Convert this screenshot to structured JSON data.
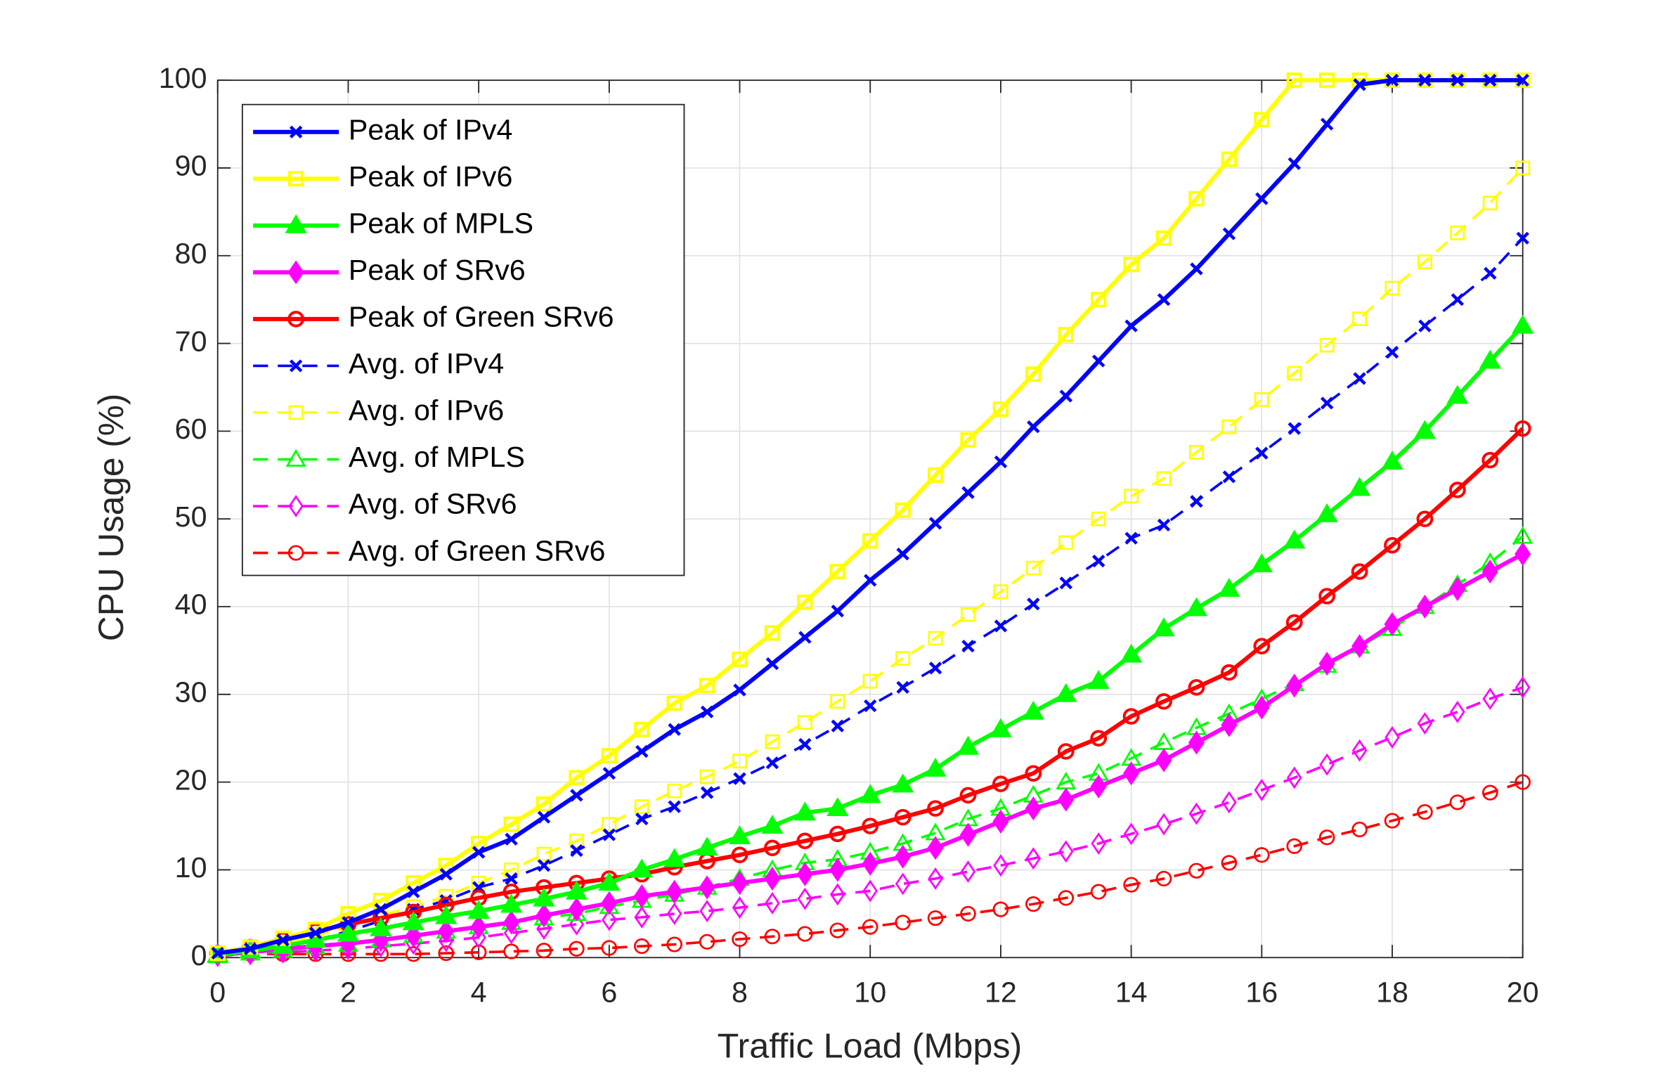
{
  "chart_data": {
    "type": "line",
    "xlabel": "Traffic Load (Mbps)",
    "ylabel": "CPU Usage (%)",
    "xlim": [
      0,
      20
    ],
    "xticks": [
      0,
      2,
      4,
      6,
      8,
      10,
      12,
      14,
      16,
      18,
      20
    ],
    "ylim": [
      0,
      100
    ],
    "yticks": [
      0,
      10,
      20,
      30,
      40,
      50,
      60,
      70,
      80,
      90,
      100
    ],
    "grid": true,
    "legend": "upper left",
    "x": [
      0,
      0.5,
      1,
      1.5,
      2,
      2.5,
      3,
      3.5,
      4,
      4.5,
      5,
      5.5,
      6,
      6.5,
      7,
      7.5,
      8,
      8.5,
      9,
      9.5,
      10,
      10.5,
      11,
      11.5,
      12,
      12.5,
      13,
      13.5,
      14,
      14.5,
      15,
      15.5,
      16,
      16.5,
      17,
      17.5,
      18,
      18.5,
      19,
      19.5,
      20
    ],
    "series": [
      {
        "name": "Peak of IPv4",
        "color": "#0000ff",
        "linestyle": "solid",
        "marker": "x",
        "marker_face": "none",
        "values": [
          0.5,
          1,
          2,
          2.8,
          4,
          5.5,
          7.5,
          9.5,
          12,
          13.5,
          16,
          18.5,
          21,
          23.5,
          26,
          28,
          30.5,
          33.5,
          36.5,
          39.5,
          43,
          46,
          49.5,
          53,
          56.5,
          60.5,
          64,
          68,
          72,
          75,
          78.5,
          82.5,
          86.5,
          90.5,
          95,
          99.5,
          100,
          100,
          100,
          100,
          100
        ]
      },
      {
        "name": "Peak of IPv6",
        "color": "#ffff00",
        "linestyle": "solid",
        "marker": "square",
        "marker_face": "none",
        "values": [
          0.5,
          1.2,
          2.2,
          3.2,
          5,
          6.5,
          8.5,
          10.5,
          13,
          15.2,
          17.5,
          20.5,
          23,
          26,
          29,
          31,
          34,
          37,
          40.5,
          44,
          47.5,
          51,
          55,
          59,
          62.5,
          66.5,
          71,
          75,
          79,
          82,
          86.5,
          91,
          95.5,
          100,
          100,
          100,
          100,
          100,
          100,
          100,
          100
        ]
      },
      {
        "name": "Peak of MPLS",
        "color": "#00ff00",
        "linestyle": "solid",
        "marker": "triangle",
        "marker_face": "#00ff00",
        "values": [
          0.3,
          0.8,
          1.3,
          2,
          2.7,
          3.3,
          4,
          4.7,
          5.3,
          6,
          6.7,
          7.5,
          8.5,
          10,
          11.2,
          12.5,
          13.8,
          15,
          16.5,
          17,
          18.5,
          19.7,
          21.5,
          24,
          26,
          28,
          30,
          31.5,
          34.5,
          37.5,
          39.8,
          42,
          44.8,
          47.5,
          50.5,
          53.5,
          56.5,
          60,
          64,
          68,
          72
        ]
      },
      {
        "name": "Peak of SRv6",
        "color": "#ff00ff",
        "linestyle": "solid",
        "marker": "diamond",
        "marker_face": "#ff00ff",
        "values": [
          0.3,
          0.6,
          1,
          1.3,
          1.6,
          2,
          2.5,
          3,
          3.5,
          4,
          4.8,
          5.5,
          6.2,
          7,
          7.5,
          8,
          8.5,
          9,
          9.5,
          10,
          10.7,
          11.5,
          12.5,
          14,
          15.5,
          17,
          18,
          19.5,
          21,
          22.5,
          24.5,
          26.5,
          28.5,
          31,
          33.5,
          35.5,
          38,
          40,
          42,
          44,
          46
        ]
      },
      {
        "name": "Peak of Green SRv6",
        "color": "#ff0000",
        "linestyle": "solid",
        "marker": "circle",
        "marker_face": "none",
        "values": [
          0.5,
          1.2,
          2,
          3,
          3.8,
          4.5,
          5.2,
          6,
          6.8,
          7.5,
          8,
          8.5,
          9,
          9.5,
          10.3,
          11,
          11.7,
          12.5,
          13.3,
          14.1,
          15,
          16,
          17,
          18.5,
          19.8,
          21,
          23.5,
          25,
          27.5,
          29.2,
          30.8,
          32.5,
          35.5,
          38.2,
          41.2,
          44,
          47,
          50,
          53.3,
          56.7,
          60.3
        ]
      },
      {
        "name": "Avg. of IPv4",
        "color": "#0000ff",
        "linestyle": "dashed",
        "marker": "x",
        "marker_face": "none",
        "values": [
          0.3,
          0.8,
          1.3,
          2,
          3,
          4.2,
          5.5,
          6.5,
          8,
          9,
          10.5,
          12.2,
          14,
          15.8,
          17.2,
          18.8,
          20.4,
          22.2,
          24.3,
          26.4,
          28.7,
          30.8,
          33,
          35.5,
          37.8,
          40.3,
          42.7,
          45.2,
          47.8,
          49.3,
          52,
          54.8,
          57.5,
          60.3,
          63.2,
          66,
          69,
          72,
          75,
          78,
          82
        ]
      },
      {
        "name": "Avg. of IPv6",
        "color": "#ffff00",
        "linestyle": "dashed",
        "marker": "square",
        "marker_face": "none",
        "values": [
          0.3,
          0.8,
          1.5,
          2.5,
          3.5,
          4.8,
          5.8,
          7,
          8.5,
          10,
          11.8,
          13.3,
          15.2,
          17.2,
          19,
          20.6,
          22.4,
          24.6,
          26.8,
          29.2,
          31.5,
          34.1,
          36.4,
          39.1,
          41.7,
          44.4,
          47.3,
          50,
          52.6,
          54.6,
          57.6,
          60.5,
          63.6,
          66.6,
          69.8,
          72.8,
          76.3,
          79.3,
          82.6,
          86,
          90
        ]
      },
      {
        "name": "Avg. of MPLS",
        "color": "#00ff00",
        "linestyle": "dashed",
        "marker": "triangle",
        "marker_face": "none",
        "values": [
          0.2,
          0.5,
          0.8,
          1.2,
          1.5,
          2,
          2.5,
          3,
          3.5,
          4,
          4.5,
          5,
          5.8,
          6.5,
          7.2,
          8,
          9,
          10,
          10.8,
          11.2,
          12,
          13,
          14.2,
          15.8,
          17,
          18.5,
          20,
          21,
          22.7,
          24.5,
          26.2,
          27.8,
          29.5,
          31.2,
          33.3,
          35.5,
          37.5,
          40,
          42.5,
          45,
          48
        ]
      },
      {
        "name": "Avg. of SRv6",
        "color": "#ff00ff",
        "linestyle": "dashed",
        "marker": "diamond",
        "marker_face": "none",
        "values": [
          0.2,
          0.4,
          0.6,
          0.8,
          1,
          1.3,
          1.6,
          1.9,
          2.3,
          2.8,
          3.3,
          3.8,
          4.3,
          4.6,
          5,
          5.3,
          5.7,
          6.2,
          6.7,
          7.2,
          7.6,
          8.4,
          9,
          9.8,
          10.5,
          11.3,
          12.1,
          13,
          14.1,
          15.2,
          16.4,
          17.7,
          19.1,
          20.5,
          22,
          23.6,
          25.1,
          26.7,
          28,
          29.5,
          30.8
        ]
      },
      {
        "name": "Avg. of Green SRv6",
        "color": "#ff0000",
        "linestyle": "dashed",
        "marker": "circle",
        "marker_face": "none",
        "values": [
          0.3,
          0.4,
          0.4,
          0.4,
          0.4,
          0.4,
          0.4,
          0.5,
          0.6,
          0.7,
          0.8,
          1,
          1.1,
          1.3,
          1.5,
          1.8,
          2.1,
          2.4,
          2.7,
          3.1,
          3.5,
          4,
          4.5,
          5,
          5.5,
          6.1,
          6.8,
          7.5,
          8.3,
          9,
          9.9,
          10.8,
          11.7,
          12.7,
          13.7,
          14.6,
          15.6,
          16.6,
          17.7,
          18.8,
          20
        ]
      }
    ]
  }
}
